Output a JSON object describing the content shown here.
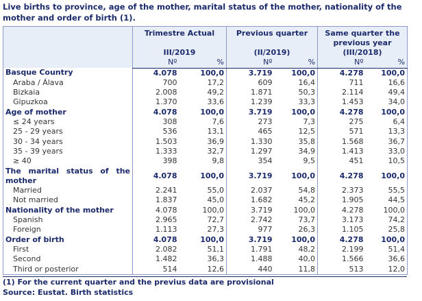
{
  "title": "Live births to province, age of the mother, marital status of the mother, nationality of the mother and order of birth (1).",
  "header": {
    "groups": [
      {
        "title": "Trimestre Actual",
        "period": "III/2019"
      },
      {
        "title": "Previous quarter",
        "period": "(II/2019)"
      },
      {
        "title": "Same quarter the previous year",
        "period": "(III/2018)"
      }
    ],
    "subheaders": [
      "Nº",
      "%",
      "Nº",
      "%",
      "Nº",
      "%"
    ]
  },
  "rows": [
    {
      "label": "Basque Country",
      "style": "section",
      "cells": [
        "4.078",
        "100,0",
        "3.719",
        "100,0",
        "4.278",
        "100,0"
      ]
    },
    {
      "label": "Araba / Álava",
      "style": "item",
      "cells": [
        "700",
        "17,2",
        "609",
        "16,4",
        "711",
        "16,6"
      ]
    },
    {
      "label": "Bizkaia",
      "style": "item",
      "cells": [
        "2.008",
        "49,2",
        "1.871",
        "50,3",
        "2.114",
        "49,4"
      ]
    },
    {
      "label": "Gipuzkoa",
      "style": "item",
      "cells": [
        "1.370",
        "33,6",
        "1.239",
        "33,3",
        "1.453",
        "34,0"
      ]
    },
    {
      "label": "Age of mother",
      "style": "section",
      "cells": [
        "4.078",
        "100,0",
        "3.719",
        "100,0",
        "4.278",
        "100,0"
      ]
    },
    {
      "label": "≤ 24 years",
      "style": "item",
      "cells": [
        "308",
        "7,6",
        "273",
        "7,3",
        "275",
        "6,4"
      ]
    },
    {
      "label": "25 - 29 years",
      "style": "item",
      "cells": [
        "536",
        "13,1",
        "465",
        "12,5",
        "571",
        "13,3"
      ]
    },
    {
      "label": "30 - 34 years",
      "style": "item",
      "cells": [
        "1.503",
        "36,9",
        "1.330",
        "35,8",
        "1.568",
        "36,7"
      ]
    },
    {
      "label": "35 - 39 years",
      "style": "item",
      "cells": [
        "1.333",
        "32,7",
        "1.297",
        "34,9",
        "1.413",
        "33,0"
      ]
    },
    {
      "label": "≥ 40",
      "style": "item",
      "cells": [
        "398",
        "9,8",
        "354",
        "9,5",
        "451",
        "10,5"
      ]
    },
    {
      "label": "The marital status of the mother",
      "style": "section",
      "cells": [
        "4.078",
        "100,0",
        "3.719",
        "100,0",
        "4.278",
        "100,0"
      ]
    },
    {
      "label": "Married",
      "style": "item",
      "cells": [
        "2.241",
        "55,0",
        "2.037",
        "54,8",
        "2.373",
        "55,5"
      ]
    },
    {
      "label": "Not married",
      "style": "item",
      "cells": [
        "1.837",
        "45,0",
        "1.682",
        "45,2",
        "1.905",
        "44,5"
      ]
    },
    {
      "label": "Nationality of the mother",
      "style": "section-plain",
      "cells": [
        "4.078",
        "100,0",
        "3.719",
        "100,0",
        "4.278",
        "100,0"
      ]
    },
    {
      "label": "Spanish",
      "style": "item",
      "cells": [
        "2.965",
        "72,7",
        "2.742",
        "73,7",
        "3.173",
        "74,2"
      ]
    },
    {
      "label": "Foreign",
      "style": "item",
      "cells": [
        "1.113",
        "27,3",
        "977",
        "26,3",
        "1.105",
        "25,8"
      ]
    },
    {
      "label": "Order of birth",
      "style": "section",
      "cells": [
        "4.078",
        "100,0",
        "3.719",
        "100,0",
        "4.278",
        "100,0"
      ]
    },
    {
      "label": "First",
      "style": "item",
      "cells": [
        "2.082",
        "51,1",
        "1.791",
        "48,2",
        "2.199",
        "51,4"
      ]
    },
    {
      "label": "Second",
      "style": "item",
      "cells": [
        "1.482",
        "36,3",
        "1.488",
        "40,0",
        "1.566",
        "36,6"
      ]
    },
    {
      "label": "Third or posterior",
      "style": "item",
      "cells": [
        "514",
        "12,6",
        "440",
        "11,8",
        "513",
        "12,0"
      ]
    }
  ],
  "footnotes": [
    "(1) For the current quarter and the previus data are provisional",
    "Source: Eustat. Birth statistics"
  ]
}
